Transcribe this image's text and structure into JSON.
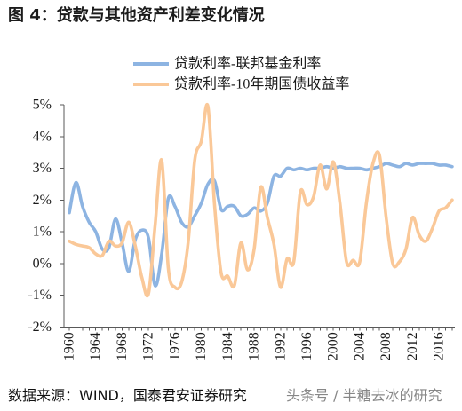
{
  "source": "数据来源：WIND，国泰君安证券研究",
  "watermark": "头条号 / 半糖去冰的研究",
  "chart_data": {
    "type": "line",
    "title": "图 4：贷款与其他资产利差变化情况",
    "xlim": [
      1960,
      2018
    ],
    "ylim": [
      -2,
      5
    ],
    "grid": false,
    "legend_position": "top-center",
    "y_tick_labels": [
      "5%",
      "4%",
      "3%",
      "2%",
      "1%",
      "0%",
      "-1%",
      "-2%"
    ],
    "x_tick_labels": [
      "1960",
      "1964",
      "1968",
      "1972",
      "1976",
      "1980",
      "1984",
      "1988",
      "1992",
      "1996",
      "2000",
      "2004",
      "2008",
      "2012",
      "2016"
    ],
    "x": [
      1960,
      1961,
      1962,
      1963,
      1964,
      1965,
      1966,
      1967,
      1968,
      1969,
      1970,
      1971,
      1972,
      1973,
      1974,
      1975,
      1976,
      1977,
      1978,
      1979,
      1980,
      1981,
      1982,
      1983,
      1984,
      1985,
      1986,
      1987,
      1988,
      1989,
      1990,
      1991,
      1992,
      1993,
      1994,
      1995,
      1996,
      1997,
      1998,
      1999,
      2000,
      2001,
      2002,
      2003,
      2004,
      2005,
      2006,
      2007,
      2008,
      2009,
      2010,
      2011,
      2012,
      2013,
      2014,
      2015,
      2016,
      2017,
      2018
    ],
    "series": [
      {
        "name": "贷款利率-联邦基金利率",
        "color": "#8DB4E2",
        "values": [
          1.6,
          2.55,
          1.8,
          1.3,
          1.0,
          0.45,
          0.5,
          1.4,
          0.65,
          -0.25,
          0.75,
          1.05,
          0.8,
          -0.7,
          0.3,
          2.05,
          1.8,
          1.3,
          1.15,
          1.5,
          1.9,
          2.5,
          2.6,
          1.7,
          1.8,
          1.8,
          1.5,
          1.55,
          1.75,
          1.65,
          1.9,
          2.75,
          2.75,
          3.0,
          2.95,
          3.0,
          2.95,
          3.0,
          3.0,
          3.05,
          3.0,
          3.05,
          3.0,
          3.0,
          3.0,
          2.95,
          3.0,
          3.05,
          3.15,
          3.1,
          3.05,
          3.15,
          3.1,
          3.15,
          3.15,
          3.15,
          3.1,
          3.1,
          3.05
        ]
      },
      {
        "name": "贷款利率-10年期国债收益率",
        "color": "#FAC898",
        "values": [
          0.7,
          0.6,
          0.55,
          0.5,
          0.3,
          0.25,
          0.7,
          0.55,
          0.65,
          1.3,
          0.55,
          -0.45,
          -0.95,
          1.2,
          3.25,
          -0.15,
          -0.75,
          -0.6,
          0.65,
          3.25,
          3.85,
          4.95,
          1.85,
          -0.3,
          -0.4,
          -0.7,
          0.65,
          -0.2,
          0.45,
          2.4,
          1.45,
          0.6,
          -0.75,
          0.15,
          0.05,
          2.25,
          1.85,
          2.1,
          3.1,
          2.35,
          3.2,
          1.9,
          0.05,
          0.1,
          0.05,
          1.9,
          3.15,
          3.4,
          1.45,
          0.0,
          0.05,
          0.45,
          1.45,
          0.9,
          0.7,
          1.1,
          1.65,
          1.75,
          2.0
        ]
      }
    ]
  }
}
